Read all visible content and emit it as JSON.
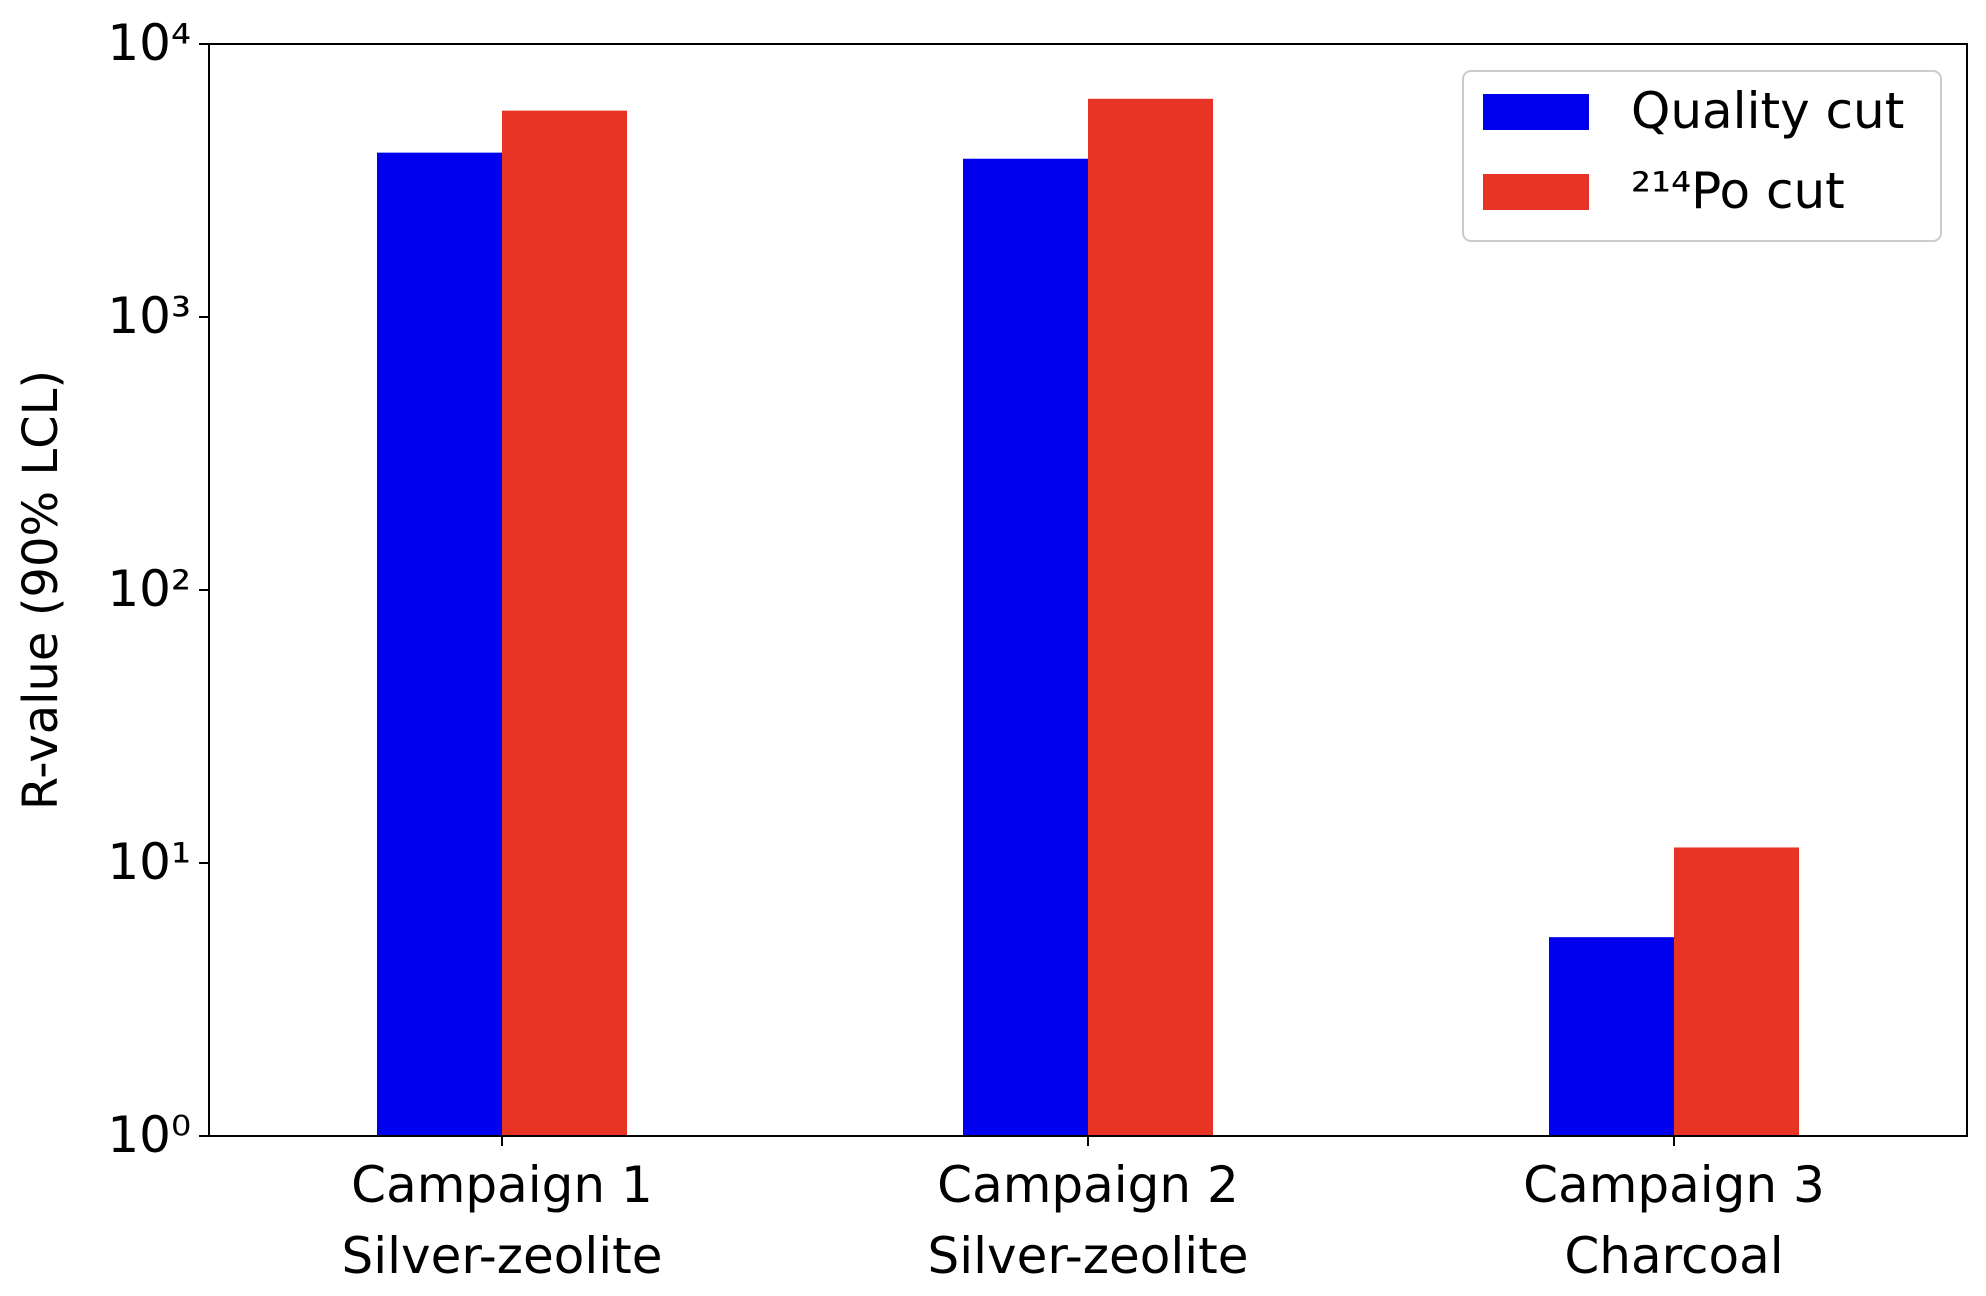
{
  "chart_data": {
    "type": "bar",
    "y_label": "R-value (90% LCL)",
    "categories": [
      "Campaign 1\nSilver-zeolite",
      "Campaign 2\nSilver-zeolite",
      "Campaign 3\nCharcoal"
    ],
    "series": [
      {
        "name": "Quality cut",
        "color": "#0000ee",
        "values": [
          4000,
          3800,
          5.35
        ]
      },
      {
        "name": "²¹⁴Po cut",
        "color": "#e83425",
        "values": [
          5700,
          6300,
          11.4
        ]
      }
    ],
    "ylim": [
      1,
      10000
    ],
    "log_y": true,
    "yticks": [
      {
        "value": 1,
        "label": "10⁰"
      },
      {
        "value": 10,
        "label": "10¹"
      },
      {
        "value": 100,
        "label": "10²"
      },
      {
        "value": 1000,
        "label": "10³"
      },
      {
        "value": 10000,
        "label": "10⁴"
      }
    ],
    "legend": "upper right"
  }
}
